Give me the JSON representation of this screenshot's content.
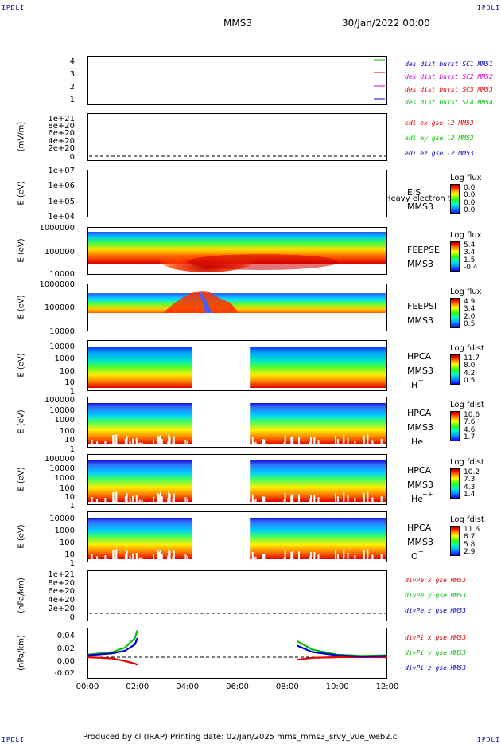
{
  "corners": {
    "top_left": "IPDLI",
    "top_right": "IPDLI",
    "bottom_left": "IPDLI",
    "bottom_right": "IPDLI"
  },
  "header": {
    "spacecraft": "MMS3",
    "datetime": "30/Jan/2022 00:00"
  },
  "footer": {
    "text": "Produced by cl (IRAP)   Printing date: 02/Jan/2025   mms_mms3_srvy_vue_web2.cl"
  },
  "colors": {
    "red": "#e00000",
    "green": "#00c000",
    "blue": "#0000c8",
    "magenta": "#d000d0"
  },
  "panels": [
    {
      "id": "des-dist",
      "ylabel": "",
      "yticks": [
        "4",
        "3",
        "2",
        "1"
      ],
      "legend": [
        {
          "text": "des dist burst SC1 MM51",
          "color": "#0000c8"
        },
        {
          "text": "des dist burst SC2 MM52",
          "color": "#d000d0"
        },
        {
          "text": "des dist burst SC3 MM53",
          "color": "#e00000"
        },
        {
          "text": "des dist burst SC4 MM54",
          "color": "#00c000"
        }
      ]
    },
    {
      "id": "edi",
      "ylabel": "(mV/m)",
      "yticks": [
        "1e+21",
        "8e+20",
        "6e+20",
        "4e+20",
        "2e+20",
        "0"
      ],
      "legend": [
        {
          "text": "edi ex gse l2 MM53",
          "color": "#e00000"
        },
        {
          "text": "edi ey gse l2 MM53",
          "color": "#00c000"
        },
        {
          "text": "edi ez gse l2 MM53",
          "color": "#0000c8"
        }
      ]
    },
    {
      "id": "eis",
      "ylabel": "E (eV)",
      "yticks": [
        "1e+07",
        "1e+06",
        "1e+05",
        "1e+04"
      ],
      "instrument": [
        "EIS",
        "MMS3"
      ],
      "overlay": "Heavy electron to",
      "cb": {
        "title": "Log flux",
        "values": [
          "0.0",
          "0.0",
          "0.0",
          "0.0"
        ]
      }
    },
    {
      "id": "feepse",
      "ylabel": "E (eV)",
      "yticks": [
        "1000000",
        "100000",
        "10000"
      ],
      "instrument": [
        "FEEPSE",
        "MMS3"
      ],
      "cb": {
        "title": "Log flux",
        "values": [
          "5.4",
          "3.4",
          "1.5",
          "-0.4"
        ]
      }
    },
    {
      "id": "feepsi",
      "ylabel": "E (eV)",
      "yticks": [
        "1000000",
        "100000",
        "10000"
      ],
      "instrument": [
        "FEEPSI",
        "MMS3"
      ],
      "cb": {
        "title": "Log flux",
        "values": [
          "4.9",
          "3.4",
          "2.0",
          "0.5"
        ]
      }
    },
    {
      "id": "hpca-h",
      "ylabel": "E (eV)",
      "yticks": [
        "10000",
        "1000",
        "100",
        "10",
        "1"
      ],
      "instrument": [
        "HPCA",
        "MMS3"
      ],
      "species": "H",
      "charge": "+",
      "cb": {
        "title": "Log fdist",
        "values": [
          "11.7",
          "8.0",
          "4.2",
          "0.5"
        ]
      }
    },
    {
      "id": "hpca-he",
      "ylabel": "E (eV)",
      "yticks": [
        "100000",
        "10000",
        "1000",
        "100",
        "10",
        "1"
      ],
      "instrument": [
        "HPCA",
        "MMS3"
      ],
      "species": "He",
      "charge": "+",
      "cb": {
        "title": "Log fdist",
        "values": [
          "10.6",
          "7.6",
          "4.6",
          "1.7"
        ]
      }
    },
    {
      "id": "hpca-hepp",
      "ylabel": "E (eV)",
      "yticks": [
        "100000",
        "10000",
        "1000",
        "100",
        "10",
        "1"
      ],
      "instrument": [
        "HPCA",
        "MMS3"
      ],
      "species": "He",
      "charge": "++",
      "cb": {
        "title": "Log fdist",
        "values": [
          "10.2",
          "7.3",
          "4.3",
          "1.4"
        ]
      }
    },
    {
      "id": "hpca-o",
      "ylabel": "E (eV)",
      "yticks": [
        "10000",
        "1000",
        "100",
        "10",
        "1"
      ],
      "instrument": [
        "HPCA",
        "MMS3"
      ],
      "species": "O",
      "charge": "+",
      "cb": {
        "title": "Log fdist",
        "values": [
          "11.6",
          "8.7",
          "5.8",
          "2.9"
        ]
      }
    },
    {
      "id": "divpe",
      "ylabel": "(nPa/km)",
      "yticks": [
        "1e+21",
        "8e+20",
        "6e+20",
        "4e+20",
        "2e+20",
        "0"
      ],
      "legend": [
        {
          "text": "divPe x gse MM53",
          "color": "#e00000"
        },
        {
          "text": "divPe y gse MM53",
          "color": "#00c000"
        },
        {
          "text": "divPe z gse MM53",
          "color": "#0000c8"
        }
      ]
    },
    {
      "id": "divpi",
      "ylabel": "(nPa/km)",
      "yticks": [
        "0.04",
        "0.02",
        "0.00",
        "-0.02"
      ],
      "legend": [
        {
          "text": "divPi x gse MM53",
          "color": "#e00000"
        },
        {
          "text": "divPi y gse MM53",
          "color": "#00c000"
        },
        {
          "text": "divPi z gse MM53",
          "color": "#0000c8"
        }
      ]
    }
  ],
  "chart_data": {
    "type": "heatmap",
    "x_ticks": [
      "00:00",
      "02:00",
      "04:00",
      "06:00",
      "08:00",
      "10:00",
      "12:00"
    ],
    "x_range_hours": [
      0,
      12
    ],
    "hpca_data_gap_hours": [
      4.2,
      6.5
    ],
    "divpi_data_gap_hours": [
      2.0,
      8.4
    ],
    "divpi_series": [
      {
        "name": "divPi x gse MM53",
        "x": [
          0,
          1,
          1.5,
          1.9,
          2.0,
          8.4,
          9,
          10,
          11,
          12
        ],
        "y": [
          0.0,
          -0.002,
          -0.006,
          -0.01,
          -0.012,
          -0.004,
          -0.001,
          0.0,
          0.0,
          0.0
        ]
      },
      {
        "name": "divPi y gse MM53",
        "x": [
          0,
          1,
          1.5,
          1.9,
          2.0,
          8.4,
          9,
          10,
          11,
          12
        ],
        "y": [
          0.004,
          0.008,
          0.015,
          0.03,
          0.042,
          0.025,
          0.012,
          0.004,
          0.002,
          0.003
        ]
      },
      {
        "name": "divPi z gse MM53",
        "x": [
          0,
          1,
          1.5,
          1.9,
          2.0,
          8.4,
          9,
          10,
          11,
          12
        ],
        "y": [
          0.003,
          0.006,
          0.01,
          0.02,
          0.03,
          0.018,
          0.008,
          0.003,
          0.001,
          0.002
        ]
      }
    ]
  }
}
